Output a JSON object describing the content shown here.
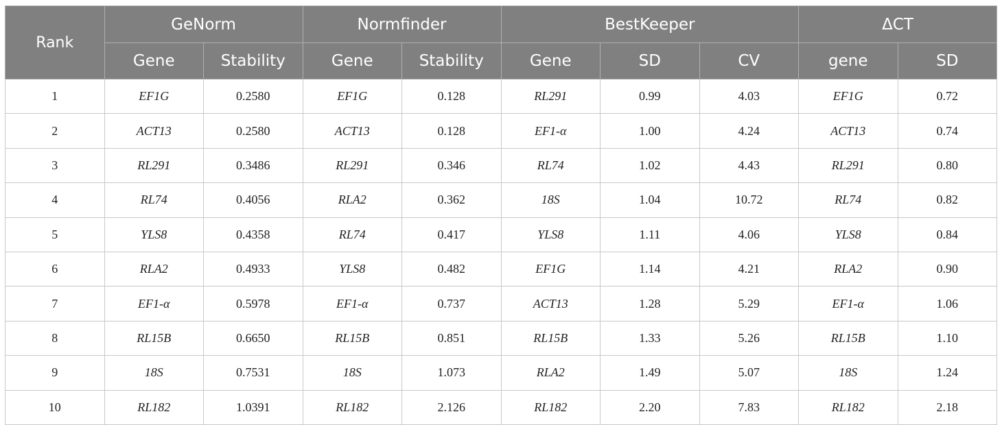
{
  "table": {
    "rank_header": "Rank",
    "groups": [
      {
        "title": "GeNorm",
        "columns": [
          "Gene",
          "Stability"
        ]
      },
      {
        "title": "Normfinder",
        "columns": [
          "Gene",
          "Stability"
        ]
      },
      {
        "title": "BestKeeper",
        "columns": [
          "Gene",
          "SD",
          "CV"
        ]
      },
      {
        "title": "ΔCT",
        "columns": [
          "gene",
          "SD"
        ]
      }
    ],
    "rows": [
      [
        "1",
        "EF1G",
        "0.2580",
        "EF1G",
        "0.128",
        "RL291",
        "0.99",
        "4.03",
        "EF1G",
        "0.72"
      ],
      [
        "2",
        "ACT13",
        "0.2580",
        "ACT13",
        "0.128",
        "EF1-α",
        "1.00",
        "4.24",
        "ACT13",
        "0.74"
      ],
      [
        "3",
        "RL291",
        "0.3486",
        "RL291",
        "0.346",
        "RL74",
        "1.02",
        "4.43",
        "RL291",
        "0.80"
      ],
      [
        "4",
        "RL74",
        "0.4056",
        "RLA2",
        "0.362",
        "18S",
        "1.04",
        "10.72",
        "RL74",
        "0.82"
      ],
      [
        "5",
        "YLS8",
        "0.4358",
        "RL74",
        "0.417",
        "YLS8",
        "1.11",
        "4.06",
        "YLS8",
        "0.84"
      ],
      [
        "6",
        "RLA2",
        "0.4933",
        "YLS8",
        "0.482",
        "EF1G",
        "1.14",
        "4.21",
        "RLA2",
        "0.90"
      ],
      [
        "7",
        "EF1-α",
        "0.5978",
        "EF1-α",
        "0.737",
        "ACT13",
        "1.28",
        "5.29",
        "EF1-α",
        "1.06"
      ],
      [
        "8",
        "RL15B",
        "0.6650",
        "RL15B",
        "0.851",
        "RL15B",
        "1.33",
        "5.26",
        "RL15B",
        "1.10"
      ],
      [
        "9",
        "18S",
        "0.7531",
        "18S",
        "1.073",
        "RLA2",
        "1.49",
        "5.07",
        "18S",
        "1.24"
      ],
      [
        "10",
        "RL182",
        "1.0391",
        "RL182",
        "2.126",
        "RL182",
        "2.20",
        "7.83",
        "RL182",
        "2.18"
      ]
    ]
  }
}
